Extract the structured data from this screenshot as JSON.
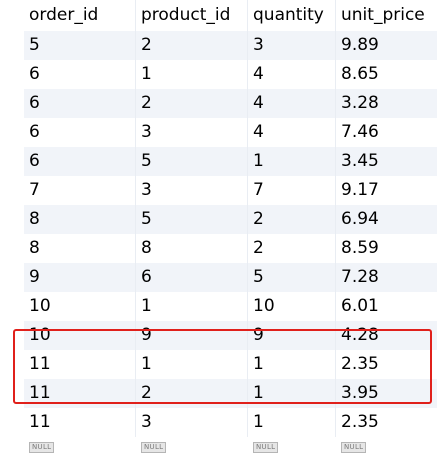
{
  "columns": [
    "order_id",
    "product_id",
    "quantity",
    "unit_price"
  ],
  "rows": [
    [
      "5",
      "2",
      "3",
      "9.89"
    ],
    [
      "6",
      "1",
      "4",
      "8.65"
    ],
    [
      "6",
      "2",
      "4",
      "3.28"
    ],
    [
      "6",
      "3",
      "4",
      "7.46"
    ],
    [
      "6",
      "5",
      "1",
      "3.45"
    ],
    [
      "7",
      "3",
      "7",
      "9.17"
    ],
    [
      "8",
      "5",
      "2",
      "6.94"
    ],
    [
      "8",
      "8",
      "2",
      "8.59"
    ],
    [
      "9",
      "6",
      "5",
      "7.28"
    ],
    [
      "10",
      "1",
      "10",
      "6.01"
    ],
    [
      "10",
      "9",
      "9",
      "4.28"
    ],
    [
      "11",
      "1",
      "1",
      "2.35"
    ],
    [
      "11",
      "2",
      "1",
      "3.95"
    ],
    [
      "11",
      "3",
      "1",
      "2.35"
    ]
  ],
  "null_label": "NULL",
  "highlight_color": "#e0201b"
}
